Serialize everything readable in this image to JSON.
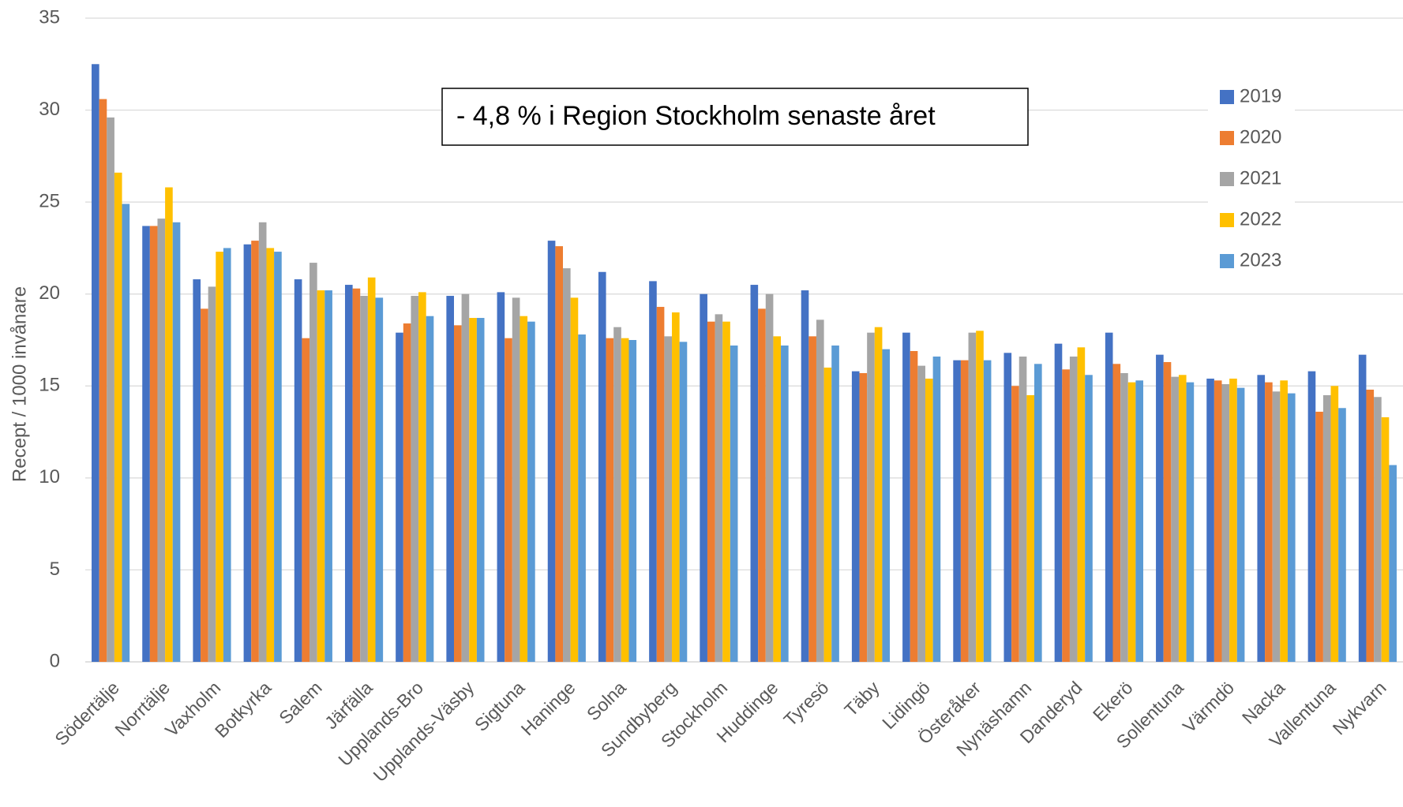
{
  "chart_data": {
    "type": "bar",
    "y_label": "Recept / 1000 invånare",
    "annotation": "- 4,8 % i Region Stockholm senaste året",
    "categories": [
      "Södertälje",
      "Norrtälje",
      "Vaxholm",
      "Botkyrka",
      "Salem",
      "Järfälla",
      "Upplands-Bro",
      "Upplands-Väsby",
      "Sigtuna",
      "Haninge",
      "Solna",
      "Sundbyberg",
      "Stockholm",
      "Huddinge",
      "Tyresö",
      "Täby",
      "Lidingö",
      "Österåker",
      "Nynäshamn",
      "Danderyd",
      "Ekerö",
      "Sollentuna",
      "Värmdö",
      "Nacka",
      "Vallentuna",
      "Nykvarn"
    ],
    "series": [
      {
        "name": "2019",
        "color": "#4472c4",
        "values": [
          32.5,
          23.7,
          20.8,
          22.7,
          20.8,
          20.5,
          17.9,
          19.9,
          20.1,
          22.9,
          21.2,
          20.7,
          20.0,
          20.5,
          20.2,
          15.8,
          17.9,
          16.4,
          16.8,
          17.3,
          17.9,
          16.7,
          15.4,
          15.6,
          15.8,
          16.7
        ]
      },
      {
        "name": "2020",
        "color": "#ed7d31",
        "values": [
          30.6,
          23.7,
          19.2,
          22.9,
          17.6,
          20.3,
          18.4,
          18.3,
          17.6,
          22.6,
          17.6,
          19.3,
          18.5,
          19.2,
          17.7,
          15.7,
          16.9,
          16.4,
          15.0,
          15.9,
          16.2,
          16.3,
          15.3,
          15.2,
          13.6,
          14.8
        ]
      },
      {
        "name": "2021",
        "color": "#a5a5a5",
        "values": [
          29.6,
          24.1,
          20.4,
          23.9,
          21.7,
          19.9,
          19.9,
          20.0,
          19.8,
          21.4,
          18.2,
          17.7,
          18.9,
          20.0,
          18.6,
          17.9,
          16.1,
          17.9,
          16.6,
          16.6,
          15.7,
          15.5,
          15.1,
          14.7,
          14.5,
          14.4
        ]
      },
      {
        "name": "2022",
        "color": "#ffc000",
        "values": [
          26.6,
          25.8,
          22.3,
          22.5,
          20.2,
          20.9,
          20.1,
          18.7,
          18.8,
          19.8,
          17.6,
          19.0,
          18.5,
          17.7,
          16.0,
          18.2,
          15.4,
          18.0,
          14.5,
          17.1,
          15.2,
          15.6,
          15.4,
          15.3,
          15.0,
          13.3
        ]
      },
      {
        "name": "2023",
        "color": "#5b9bd5",
        "values": [
          24.9,
          23.9,
          22.5,
          22.3,
          20.2,
          19.8,
          18.8,
          18.7,
          18.5,
          17.8,
          17.5,
          17.4,
          17.2,
          17.2,
          17.2,
          17.0,
          16.6,
          16.4,
          16.2,
          15.6,
          15.3,
          15.2,
          14.9,
          14.6,
          13.8,
          10.7
        ]
      }
    ],
    "ylim": [
      0,
      35
    ],
    "yticks": [
      0,
      5,
      10,
      15,
      20,
      25,
      30,
      35
    ],
    "grid": true
  }
}
